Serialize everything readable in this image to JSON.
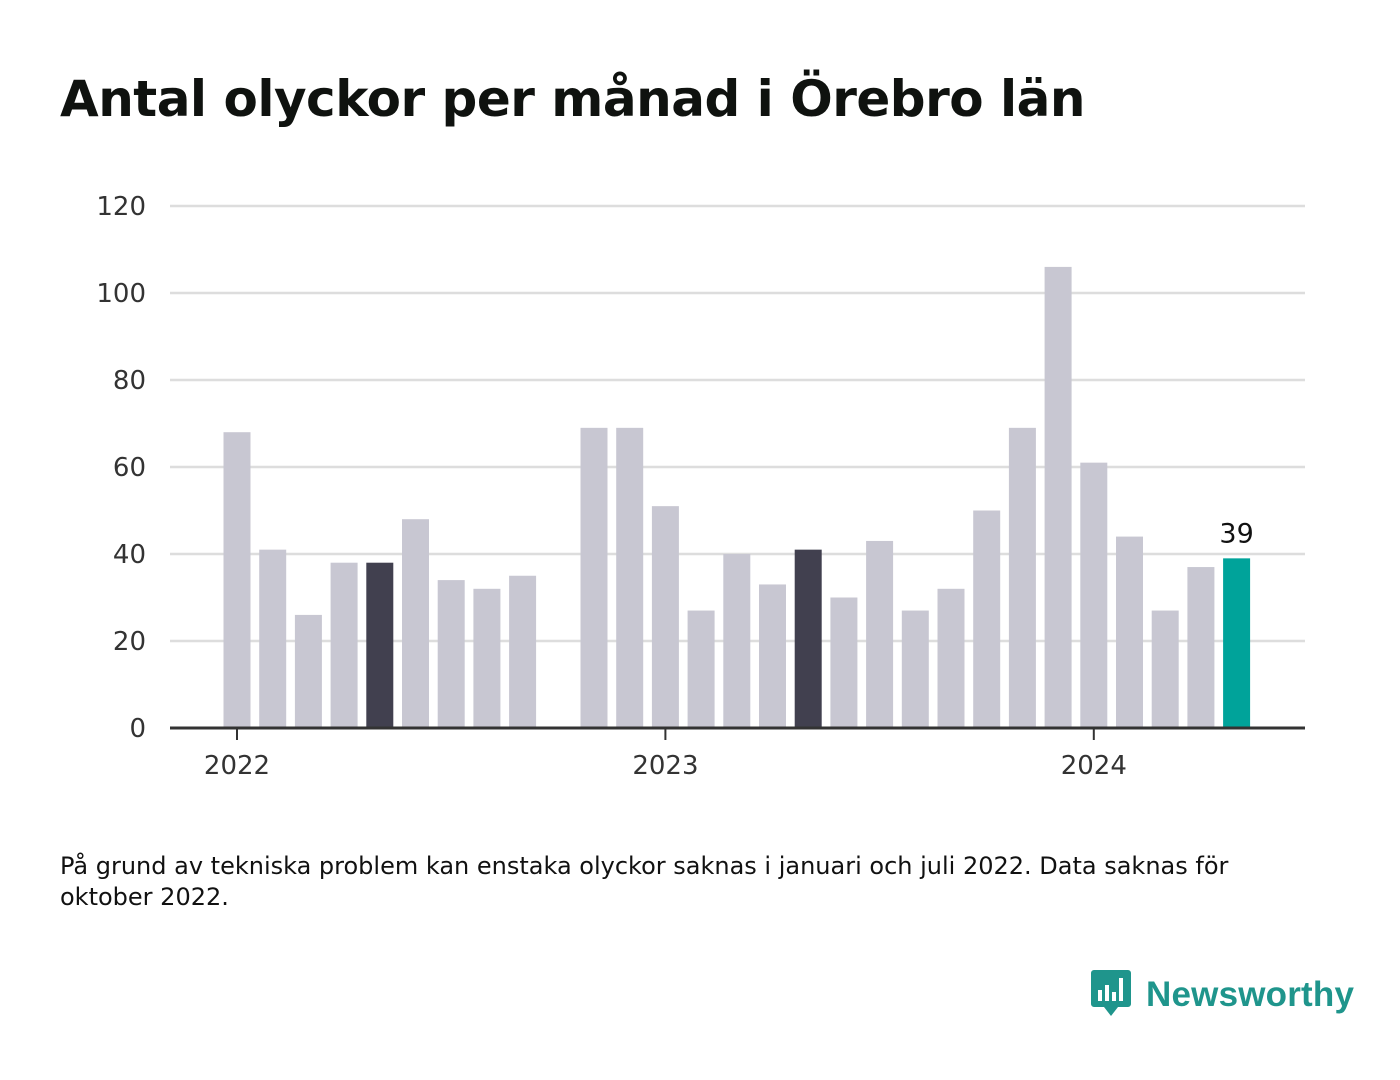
{
  "title": "Antal olyckor per månad i Örebro län",
  "note": "På grund av tekniska problem kan enstaka olyckor saknas i januari och juli 2022. Data saknas för oktober 2022.",
  "brand": {
    "name": "Newsworthy",
    "icon": "newsworthy-logo-icon",
    "color": "#1f958c"
  },
  "colors": {
    "default_bar": "#c8c7d2",
    "highlight_bar": "#41404f",
    "latest_bar": "#00a39a",
    "grid": "#dddddd",
    "axis": "#333333"
  },
  "chart_data": {
    "type": "bar",
    "title": "Antal olyckor per månad i Örebro län",
    "xlabel": "",
    "ylabel": "",
    "ylim": [
      0,
      120
    ],
    "yticks": [
      0,
      20,
      40,
      60,
      80,
      100,
      120
    ],
    "grid": true,
    "xtick_labels": [
      {
        "label": "2022",
        "at": "2022-01"
      },
      {
        "label": "2023",
        "at": "2023-01"
      },
      {
        "label": "2024",
        "at": "2024-01"
      }
    ],
    "categories": [
      "2022-01",
      "2022-02",
      "2022-03",
      "2022-04",
      "2022-05",
      "2022-06",
      "2022-07",
      "2022-08",
      "2022-09",
      "2022-10",
      "2022-11",
      "2022-12",
      "2023-01",
      "2023-02",
      "2023-03",
      "2023-04",
      "2023-05",
      "2023-06",
      "2023-07",
      "2023-08",
      "2023-09",
      "2023-10",
      "2023-11",
      "2023-12",
      "2024-01",
      "2024-02",
      "2024-03",
      "2024-04",
      "2024-05"
    ],
    "values": [
      68,
      41,
      26,
      38,
      38,
      48,
      34,
      32,
      35,
      null,
      69,
      69,
      51,
      27,
      40,
      33,
      41,
      30,
      43,
      27,
      32,
      50,
      69,
      106,
      61,
      44,
      27,
      37,
      39
    ],
    "highlighted": [
      "2022-05",
      "2023-05"
    ],
    "latest": "2024-05",
    "data_labels": [
      {
        "category": "2024-05",
        "text": "39"
      }
    ]
  }
}
